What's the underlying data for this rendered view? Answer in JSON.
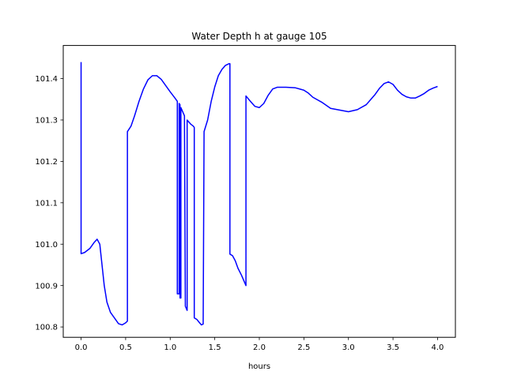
{
  "chart_data": {
    "type": "line",
    "title": "Water Depth h at gauge 105",
    "xlabel": "hours",
    "ylabel": "",
    "xlim": [
      -0.2,
      4.2
    ],
    "ylim": [
      100.775,
      101.48
    ],
    "xticks": [
      0.0,
      0.5,
      1.0,
      1.5,
      2.0,
      2.5,
      3.0,
      3.5,
      4.0
    ],
    "xtick_labels": [
      "0.0",
      "0.5",
      "1.0",
      "1.5",
      "2.0",
      "2.5",
      "3.0",
      "3.5",
      "4.0"
    ],
    "yticks": [
      100.8,
      100.9,
      101.0,
      101.1,
      101.2,
      101.3,
      101.4
    ],
    "ytick_labels": [
      "100.8",
      "100.9",
      "101.0",
      "101.1",
      "101.2",
      "101.3",
      "101.4"
    ],
    "grid": false,
    "series": [
      {
        "color": "#0000ff",
        "points": [
          [
            0.0,
            101.44
          ],
          [
            0.0,
            100.977
          ],
          [
            0.04,
            100.98
          ],
          [
            0.1,
            100.99
          ],
          [
            0.15,
            101.005
          ],
          [
            0.18,
            101.012
          ],
          [
            0.21,
            101.0
          ],
          [
            0.23,
            100.96
          ],
          [
            0.26,
            100.9
          ],
          [
            0.29,
            100.86
          ],
          [
            0.33,
            100.835
          ],
          [
            0.38,
            100.82
          ],
          [
            0.42,
            100.808
          ],
          [
            0.46,
            100.805
          ],
          [
            0.5,
            100.81
          ],
          [
            0.52,
            100.814
          ],
          [
            0.52,
            101.272
          ],
          [
            0.56,
            101.285
          ],
          [
            0.6,
            101.31
          ],
          [
            0.65,
            101.345
          ],
          [
            0.7,
            101.375
          ],
          [
            0.75,
            101.397
          ],
          [
            0.8,
            101.407
          ],
          [
            0.85,
            101.407
          ],
          [
            0.9,
            101.398
          ],
          [
            0.95,
            101.383
          ],
          [
            1.0,
            101.368
          ],
          [
            1.05,
            101.354
          ],
          [
            1.08,
            101.345
          ],
          [
            1.08,
            100.88
          ],
          [
            1.1,
            100.88
          ],
          [
            1.1,
            101.34
          ],
          [
            1.11,
            101.337
          ],
          [
            1.11,
            100.87
          ],
          [
            1.12,
            100.87
          ],
          [
            1.12,
            101.33
          ],
          [
            1.16,
            101.31
          ],
          [
            1.17,
            100.85
          ],
          [
            1.19,
            100.84
          ],
          [
            1.19,
            101.3
          ],
          [
            1.23,
            101.29
          ],
          [
            1.26,
            101.285
          ],
          [
            1.27,
            101.282
          ],
          [
            1.27,
            100.822
          ],
          [
            1.3,
            100.818
          ],
          [
            1.33,
            100.81
          ],
          [
            1.35,
            100.805
          ],
          [
            1.37,
            100.807
          ],
          [
            1.38,
            101.272
          ],
          [
            1.42,
            101.3
          ],
          [
            1.46,
            101.345
          ],
          [
            1.5,
            101.38
          ],
          [
            1.54,
            101.407
          ],
          [
            1.58,
            101.422
          ],
          [
            1.62,
            101.432
          ],
          [
            1.66,
            101.436
          ],
          [
            1.67,
            101.436
          ],
          [
            1.67,
            100.976
          ],
          [
            1.7,
            100.972
          ],
          [
            1.73,
            100.96
          ],
          [
            1.76,
            100.942
          ],
          [
            1.8,
            100.925
          ],
          [
            1.84,
            100.905
          ],
          [
            1.85,
            100.9
          ],
          [
            1.85,
            101.358
          ],
          [
            1.9,
            101.345
          ],
          [
            1.95,
            101.333
          ],
          [
            2.0,
            101.33
          ],
          [
            2.05,
            101.34
          ],
          [
            2.1,
            101.36
          ],
          [
            2.15,
            101.375
          ],
          [
            2.2,
            101.379
          ],
          [
            2.3,
            101.379
          ],
          [
            2.4,
            101.378
          ],
          [
            2.5,
            101.372
          ],
          [
            2.55,
            101.365
          ],
          [
            2.6,
            101.355
          ],
          [
            2.7,
            101.343
          ],
          [
            2.8,
            101.328
          ],
          [
            2.9,
            101.324
          ],
          [
            3.0,
            101.32
          ],
          [
            3.1,
            101.325
          ],
          [
            3.2,
            101.337
          ],
          [
            3.3,
            101.362
          ],
          [
            3.35,
            101.377
          ],
          [
            3.4,
            101.388
          ],
          [
            3.45,
            101.392
          ],
          [
            3.5,
            101.386
          ],
          [
            3.55,
            101.372
          ],
          [
            3.6,
            101.362
          ],
          [
            3.65,
            101.356
          ],
          [
            3.7,
            101.353
          ],
          [
            3.75,
            101.353
          ],
          [
            3.8,
            101.358
          ],
          [
            3.85,
            101.364
          ],
          [
            3.9,
            101.372
          ],
          [
            3.95,
            101.377
          ],
          [
            4.0,
            101.381
          ]
        ]
      }
    ]
  }
}
